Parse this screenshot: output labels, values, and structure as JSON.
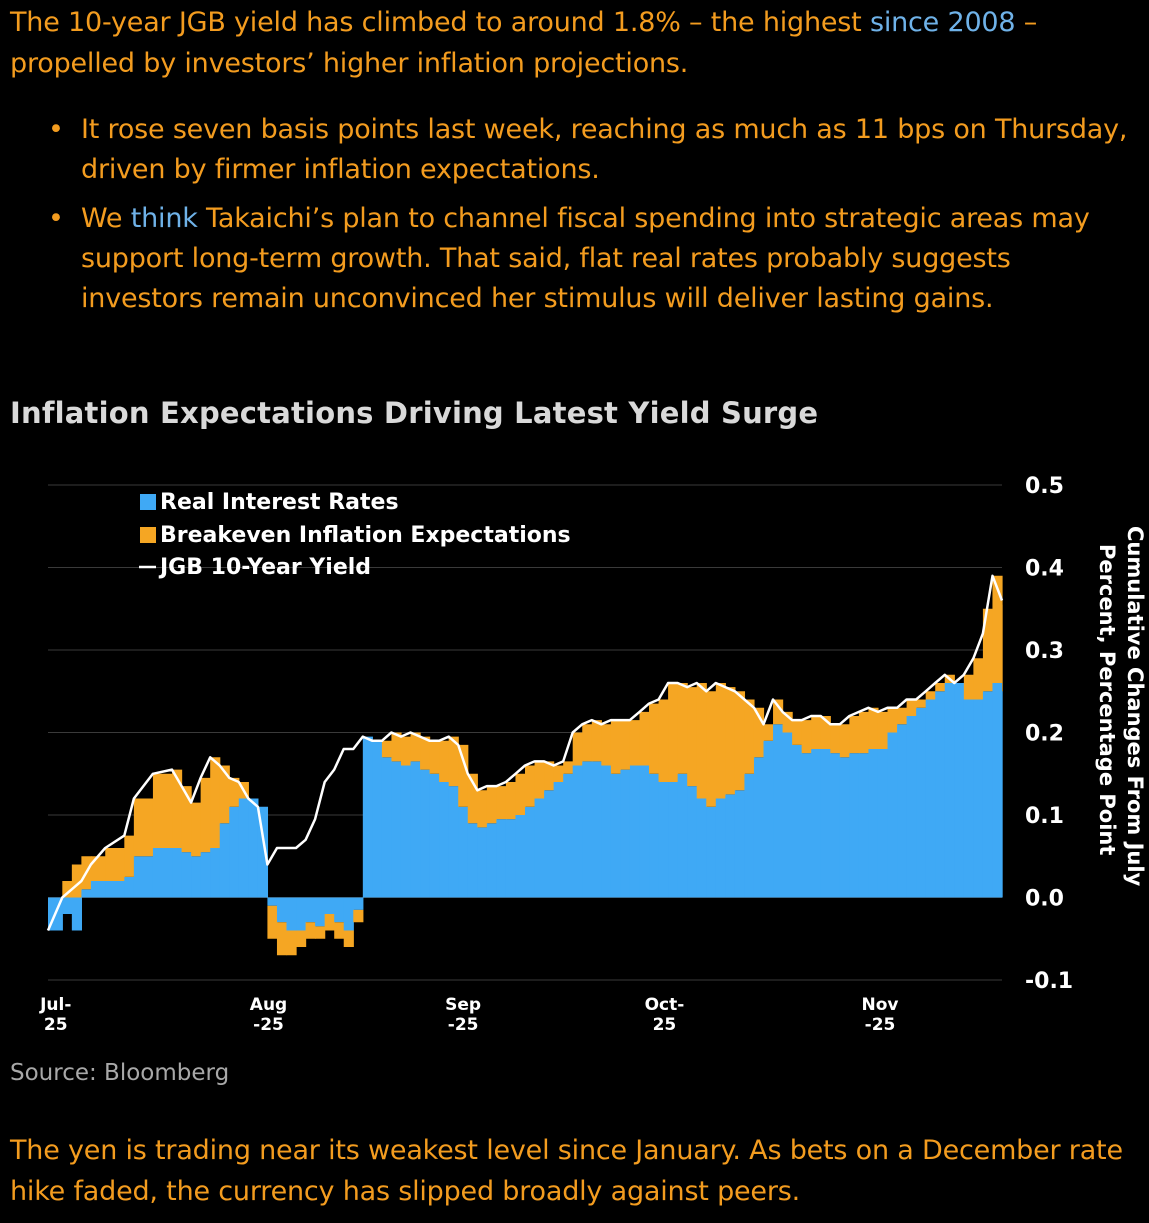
{
  "intro": {
    "text_before_link": "The 10-year JGB yield has climbed to around 1.8% – the highest ",
    "link": "since 2008",
    "text_after_link": " – propelled by investors’ higher inflation projections."
  },
  "bullets": [
    {
      "before": "It rose seven basis points last week, reaching as much as 11 bps on Thursday, driven by firmer inflation expectations.",
      "link": "",
      "after": ""
    },
    {
      "before": "We ",
      "link": "think",
      "after": " Takaichi’s plan to channel fiscal spending into strategic areas may support long-term growth. That said, flat real rates probably suggests investors remain unconvinced her stimulus will deliver lasting gains."
    }
  ],
  "chart_title": "Inflation Expectations Driving Latest Yield Surge",
  "source": "Source: Bloomberg",
  "outro": "The yen is trading near its weakest level since January. As bets on a December rate hike faded, the currency has slipped broadly against peers.",
  "colors": {
    "text_orange": "#f39c1f",
    "link_blue": "#6fb2e8",
    "real_rates": "#3fa9f5",
    "breakeven": "#f5a623",
    "yield_line": "#ffffff",
    "grid": "#3a3a3a"
  },
  "chart_data": {
    "type": "area",
    "title": "Inflation Expectations Driving Latest Yield Surge",
    "ylabel": "Cumulative Changes From July Percent, Percentage Point",
    "ylim": [
      -0.1,
      0.5
    ],
    "yticks": [
      "0.5",
      "0.4",
      "0.3",
      "0.2",
      "0.1",
      "0.0",
      "-0.1"
    ],
    "ytick_values": [
      0.5,
      0.4,
      0.3,
      0.2,
      0.1,
      0.0,
      -0.1
    ],
    "x_range": [
      0,
      100
    ],
    "x_ticks": [
      {
        "x": 0.5,
        "label1": "Jul-",
        "label2": "25"
      },
      {
        "x": 22.8,
        "label1": "Aug",
        "label2": "-25"
      },
      {
        "x": 43.2,
        "label1": "Sep",
        "label2": "-25"
      },
      {
        "x": 64.3,
        "label1": "Oct-",
        "label2": "25"
      },
      {
        "x": 86.9,
        "label1": "Nov",
        "label2": "-25"
      }
    ],
    "legend": [
      "Real Interest Rates",
      "Breakeven Inflation Expectations",
      "JGB 10-Year Yield"
    ],
    "legend_position": "top-left",
    "series": [
      {
        "name": "Real Interest Rates",
        "x": [
          0,
          1.5,
          2.5,
          3.5,
          4.5,
          6,
          8,
          9,
          11,
          13,
          14,
          15,
          16,
          17,
          18,
          19,
          20,
          21,
          22,
          23,
          24,
          25,
          26,
          27,
          28,
          29,
          30,
          31,
          32,
          33,
          34,
          35,
          36,
          37,
          38,
          39,
          40,
          41,
          42,
          43,
          44,
          45,
          46,
          47,
          48,
          49,
          50,
          51,
          52,
          53,
          54,
          55,
          56,
          57,
          58,
          59,
          60,
          61,
          62,
          63,
          64,
          65,
          66,
          67,
          68,
          69,
          70,
          71,
          72,
          73,
          74,
          75,
          76,
          77,
          78,
          79,
          80,
          81,
          82,
          83,
          84,
          85,
          86,
          87,
          88,
          89,
          90,
          91,
          92,
          93,
          94,
          95,
          96,
          97,
          98,
          99,
          100
        ],
        "values": [
          -0.04,
          -0.02,
          -0.04,
          0.01,
          0.02,
          0.02,
          0.025,
          0.05,
          0.06,
          0.06,
          0.055,
          0.05,
          0.055,
          0.06,
          0.09,
          0.11,
          0.12,
          0.12,
          0.11,
          -0.01,
          -0.03,
          -0.04,
          -0.04,
          -0.03,
          -0.035,
          -0.02,
          -0.03,
          -0.04,
          -0.015,
          0.195,
          0.19,
          0.17,
          0.165,
          0.16,
          0.165,
          0.155,
          0.15,
          0.14,
          0.135,
          0.11,
          0.09,
          0.085,
          0.09,
          0.095,
          0.095,
          0.1,
          0.11,
          0.12,
          0.13,
          0.14,
          0.15,
          0.16,
          0.165,
          0.165,
          0.16,
          0.15,
          0.155,
          0.16,
          0.16,
          0.15,
          0.14,
          0.14,
          0.15,
          0.135,
          0.12,
          0.11,
          0.12,
          0.125,
          0.13,
          0.15,
          0.17,
          0.19,
          0.21,
          0.2,
          0.185,
          0.175,
          0.18,
          0.18,
          0.175,
          0.17,
          0.175,
          0.175,
          0.18,
          0.18,
          0.2,
          0.21,
          0.22,
          0.23,
          0.24,
          0.25,
          0.26,
          0.26,
          0.24,
          0.24,
          0.25,
          0.26,
          0.25
        ]
      },
      {
        "name": "Breakeven Inflation Expectations",
        "x": [
          0,
          1.5,
          2.5,
          3.5,
          4.5,
          6,
          8,
          9,
          11,
          13,
          14,
          15,
          16,
          17,
          18,
          19,
          20,
          21,
          22,
          23,
          24,
          25,
          26,
          27,
          28,
          29,
          30,
          31,
          32,
          33,
          34,
          35,
          36,
          37,
          38,
          39,
          40,
          41,
          42,
          43,
          44,
          45,
          46,
          47,
          48,
          49,
          50,
          51,
          52,
          53,
          54,
          55,
          56,
          57,
          58,
          59,
          60,
          61,
          62,
          63,
          64,
          65,
          66,
          67,
          68,
          69,
          70,
          71,
          72,
          73,
          74,
          75,
          76,
          77,
          78,
          79,
          80,
          81,
          82,
          83,
          84,
          85,
          86,
          87,
          88,
          89,
          90,
          91,
          92,
          93,
          94,
          95,
          96,
          97,
          98,
          99,
          100
        ],
        "values": [
          0.0,
          0.02,
          0.04,
          0.04,
          0.03,
          0.04,
          0.05,
          0.07,
          0.09,
          0.095,
          0.08,
          0.065,
          0.09,
          0.11,
          0.07,
          0.035,
          0.02,
          0.0,
          0.0,
          -0.04,
          -0.04,
          -0.03,
          -0.02,
          -0.02,
          -0.015,
          -0.02,
          -0.02,
          -0.02,
          -0.015,
          0.0,
          0.0,
          0.02,
          0.035,
          0.035,
          0.035,
          0.04,
          0.04,
          0.05,
          0.06,
          0.075,
          0.06,
          0.045,
          0.045,
          0.04,
          0.045,
          0.05,
          0.05,
          0.045,
          0.035,
          0.02,
          0.015,
          0.04,
          0.045,
          0.05,
          0.05,
          0.065,
          0.06,
          0.055,
          0.065,
          0.085,
          0.1,
          0.12,
          0.11,
          0.12,
          0.14,
          0.14,
          0.14,
          0.13,
          0.12,
          0.09,
          0.06,
          0.02,
          0.03,
          0.025,
          0.03,
          0.04,
          0.04,
          0.04,
          0.035,
          0.04,
          0.045,
          0.05,
          0.05,
          0.045,
          0.03,
          0.02,
          0.02,
          0.01,
          0.01,
          0.01,
          0.01,
          0.0,
          0.03,
          0.05,
          0.1,
          0.13,
          0.105
        ]
      },
      {
        "name": "JGB 10-Year Yield",
        "x": [
          0,
          1.5,
          2.5,
          3.5,
          4.5,
          6,
          8,
          9,
          11,
          13,
          14,
          15,
          16,
          17,
          18,
          19,
          20,
          21,
          22,
          23,
          24,
          25,
          26,
          27,
          28,
          29,
          30,
          31,
          32,
          33,
          34,
          35,
          36,
          37,
          38,
          39,
          40,
          41,
          42,
          43,
          44,
          45,
          46,
          47,
          48,
          49,
          50,
          51,
          52,
          53,
          54,
          55,
          56,
          57,
          58,
          59,
          60,
          61,
          62,
          63,
          64,
          65,
          66,
          67,
          68,
          69,
          70,
          71,
          72,
          73,
          74,
          75,
          76,
          77,
          78,
          79,
          80,
          81,
          82,
          83,
          84,
          85,
          86,
          87,
          88,
          89,
          90,
          91,
          92,
          93,
          94,
          95,
          96,
          97,
          98,
          99,
          100
        ],
        "values": [
          -0.04,
          0.0,
          0.01,
          0.02,
          0.04,
          0.06,
          0.075,
          0.12,
          0.15,
          0.155,
          0.135,
          0.115,
          0.145,
          0.17,
          0.16,
          0.145,
          0.14,
          0.12,
          0.11,
          0.04,
          0.06,
          0.06,
          0.06,
          0.07,
          0.095,
          0.14,
          0.155,
          0.18,
          0.18,
          0.195,
          0.19,
          0.19,
          0.2,
          0.195,
          0.2,
          0.195,
          0.19,
          0.19,
          0.195,
          0.185,
          0.15,
          0.13,
          0.135,
          0.135,
          0.14,
          0.15,
          0.16,
          0.165,
          0.165,
          0.16,
          0.165,
          0.2,
          0.21,
          0.215,
          0.21,
          0.215,
          0.215,
          0.215,
          0.225,
          0.235,
          0.24,
          0.26,
          0.26,
          0.255,
          0.26,
          0.25,
          0.26,
          0.255,
          0.25,
          0.24,
          0.23,
          0.21,
          0.24,
          0.225,
          0.215,
          0.215,
          0.22,
          0.22,
          0.21,
          0.21,
          0.22,
          0.225,
          0.23,
          0.225,
          0.23,
          0.23,
          0.24,
          0.24,
          0.25,
          0.26,
          0.27,
          0.26,
          0.27,
          0.29,
          0.32,
          0.39,
          0.36
        ]
      }
    ]
  }
}
